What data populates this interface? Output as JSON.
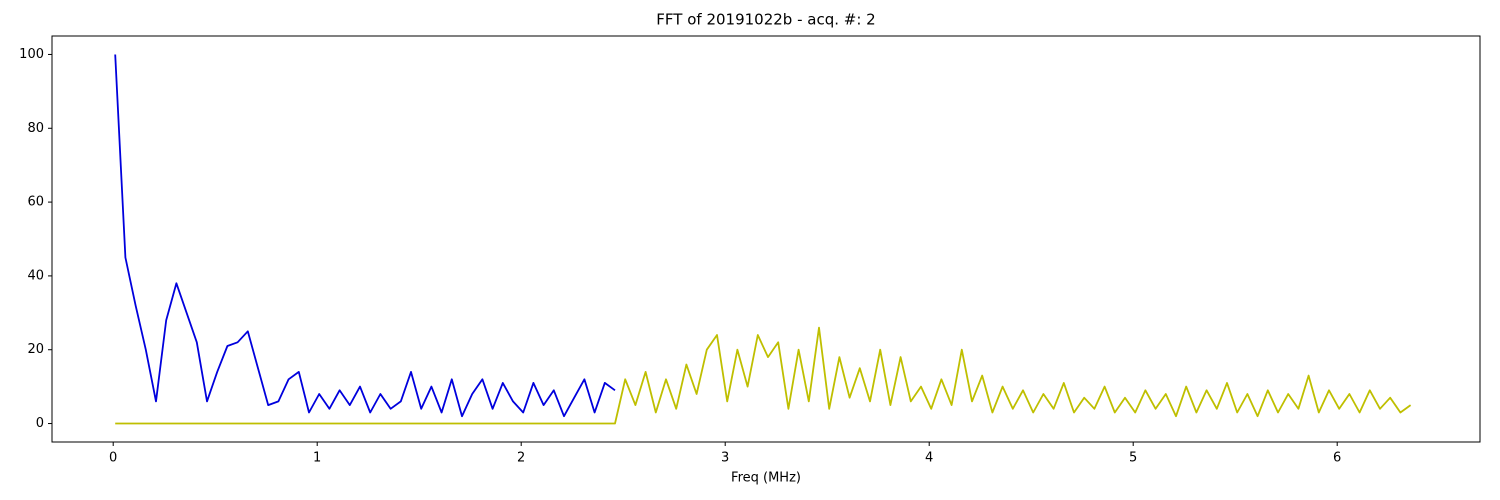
{
  "chart_data": {
    "type": "line",
    "title": "FFT of 20191022b - acq. #: 2",
    "x_label": "Freq (MHz)",
    "x": [
      0.01,
      0.06,
      0.11,
      0.16,
      0.21,
      0.26,
      0.31,
      0.36,
      0.41,
      0.46,
      0.51,
      0.56,
      0.61,
      0.66,
      0.71,
      0.76,
      0.81,
      0.86,
      0.91,
      0.96,
      1.01,
      1.06,
      1.11,
      1.16,
      1.21,
      1.26,
      1.31,
      1.36,
      1.41,
      1.46,
      1.51,
      1.56,
      1.61,
      1.66,
      1.71,
      1.76,
      1.81,
      1.86,
      1.91,
      1.96,
      2.01,
      2.06,
      2.11,
      2.16,
      2.21,
      2.26,
      2.31,
      2.36,
      2.41,
      2.46,
      2.51,
      2.56,
      2.61,
      2.66,
      2.71,
      2.76,
      2.81,
      2.86,
      2.91,
      2.96,
      3.01,
      3.06,
      3.11,
      3.16,
      3.21,
      3.26,
      3.31,
      3.36,
      3.41,
      3.46,
      3.51,
      3.56,
      3.61,
      3.66,
      3.71,
      3.76,
      3.81,
      3.86,
      3.91,
      3.96,
      4.01,
      4.06,
      4.11,
      4.16,
      4.21,
      4.26,
      4.31,
      4.36,
      4.41,
      4.46,
      4.51,
      4.56,
      4.61,
      4.66,
      4.71,
      4.76,
      4.81,
      4.86,
      4.91,
      4.96,
      5.01,
      5.06,
      5.11,
      5.16,
      5.21,
      5.26,
      5.31,
      5.36,
      5.41,
      5.46,
      5.51,
      5.56,
      5.61,
      5.66,
      5.71,
      5.76,
      5.81,
      5.86,
      5.91,
      5.96,
      6.01,
      6.06,
      6.11,
      6.16,
      6.21,
      6.26,
      6.31,
      6.36
    ],
    "series": [
      {
        "color": "#0000dd",
        "values": [
          100,
          45,
          32,
          20,
          6,
          28,
          38,
          30,
          22,
          6,
          14,
          21,
          22,
          25,
          15,
          5,
          6,
          12,
          14,
          3,
          8,
          4,
          9,
          5,
          10,
          3,
          8,
          4,
          6,
          14,
          4,
          10,
          3,
          12,
          2,
          8,
          12,
          4,
          11,
          6,
          3,
          11,
          5,
          9,
          2,
          7,
          12,
          3,
          11,
          9,
          null,
          null,
          null,
          null,
          null,
          null,
          null,
          null,
          null,
          null,
          null,
          null,
          null,
          null,
          null,
          null,
          null,
          null,
          null,
          null,
          null,
          null,
          null,
          null,
          null,
          null,
          null,
          null,
          null,
          null,
          null,
          null,
          null,
          null,
          null,
          null,
          null,
          null,
          null,
          null,
          null,
          null,
          null,
          null,
          null,
          null,
          null,
          null,
          null,
          null,
          null,
          null,
          null,
          null,
          null,
          null,
          null,
          null,
          null,
          null,
          null,
          null,
          null,
          null,
          null,
          null,
          null,
          null,
          null,
          null,
          null,
          null,
          null,
          null,
          null,
          null,
          null,
          null
        ]
      },
      {
        "color": "#bfbf00",
        "values": [
          0,
          0,
          0,
          0,
          0,
          0,
          0,
          0,
          0,
          0,
          0,
          0,
          0,
          0,
          0,
          0,
          0,
          0,
          0,
          0,
          0,
          0,
          0,
          0,
          0,
          0,
          0,
          0,
          0,
          0,
          0,
          0,
          0,
          0,
          0,
          0,
          0,
          0,
          0,
          0,
          0,
          0,
          0,
          0,
          0,
          0,
          0,
          0,
          0,
          0,
          12,
          5,
          14,
          3,
          12,
          4,
          16,
          8,
          20,
          24,
          6,
          20,
          10,
          24,
          18,
          22,
          4,
          20,
          6,
          26,
          4,
          18,
          7,
          15,
          6,
          20,
          5,
          18,
          6,
          10,
          4,
          12,
          5,
          20,
          6,
          13,
          3,
          10,
          4,
          9,
          3,
          8,
          4,
          11,
          3,
          7,
          4,
          10,
          3,
          7,
          3,
          9,
          4,
          8,
          2,
          10,
          3,
          9,
          4,
          11,
          3,
          8,
          2,
          9,
          3,
          8,
          4,
          13,
          3,
          9,
          4,
          8,
          3,
          9,
          4,
          7,
          3,
          5
        ]
      }
    ],
    "xlim": [
      -0.3,
      6.7
    ],
    "xticks": [
      0,
      1,
      2,
      3,
      4,
      5,
      6
    ],
    "ylim": [
      -5,
      105
    ],
    "yticks": [
      0,
      20,
      40,
      60,
      80,
      100
    ]
  }
}
